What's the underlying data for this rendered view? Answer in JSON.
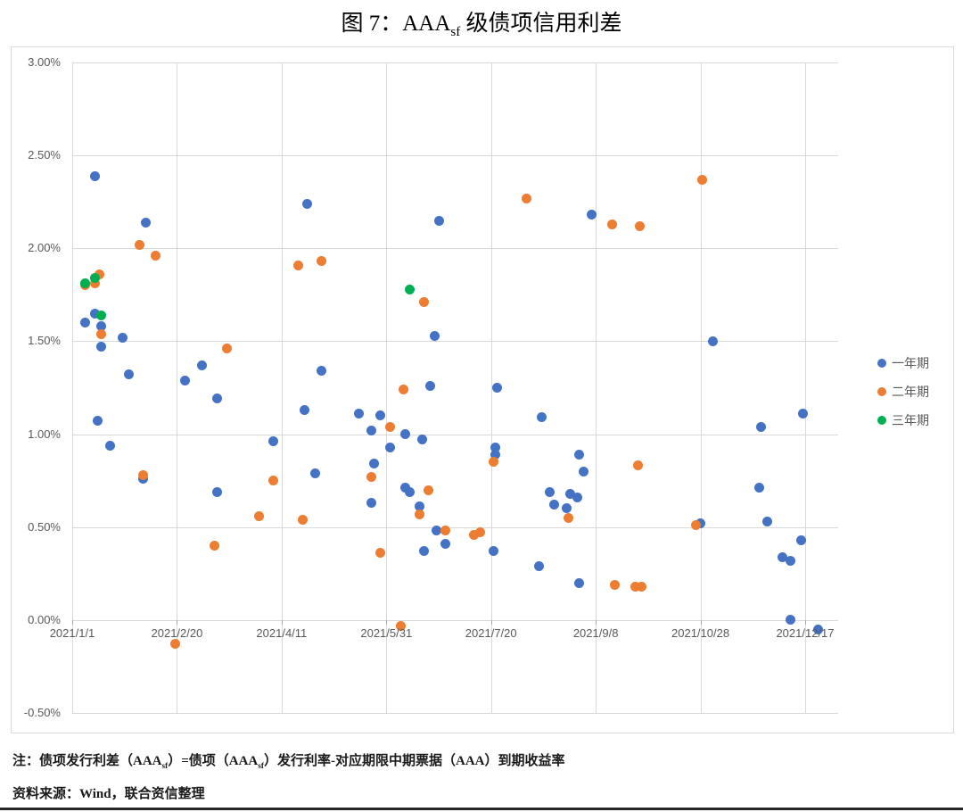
{
  "title": {
    "part1": "图 7：AAA",
    "subscript": "sf",
    "part2": "级债项信用利差"
  },
  "notes": {
    "line1_a": "注：债项发行利差（AAA",
    "line1_sub1": "sf",
    "line1_b": "）=债项（AAA",
    "line1_sub2": "sf",
    "line1_c": "）发行利率-对应期限中期票据（AAA）到期收益率",
    "line2": "资料来源：Wind，联合资信整理"
  },
  "colors": {
    "series1": "#4472C4",
    "series2": "#ED7D31",
    "series3": "#00B050",
    "gridline": "#d9d9d9",
    "axis_text": "#595959"
  },
  "chart_data": {
    "type": "scatter",
    "title": "图 7：AAAsf级债项信用利差",
    "grid": true,
    "legend": {
      "position": "right",
      "entries": [
        "一年期",
        "二年期",
        "三年期"
      ]
    },
    "y_axis": {
      "min": -0.5,
      "max": 3.0,
      "step": 0.5,
      "unit": "percent",
      "tick_values": [
        3.0,
        2.5,
        2.0,
        1.5,
        1.0,
        0.5,
        0.0,
        -0.5
      ],
      "tick_labels": [
        "3.00%",
        "2.50%",
        "2.00%",
        "1.50%",
        "1.00%",
        "0.50%",
        "0.00%",
        "-0.50%"
      ]
    },
    "x_axis": {
      "tick_labels": [
        "2021/1/1",
        "2021/2/20",
        "2021/4/11",
        "2021/5/31",
        "2021/7/20",
        "2021/9/8",
        "2021/10/28",
        "2021/12/17"
      ],
      "tick_days": [
        0,
        50,
        100,
        150,
        200,
        250,
        300,
        350
      ],
      "start": "2021/1/1",
      "end": "2021/12/17"
    },
    "series": [
      {
        "name": "一年期",
        "color": "#4472C4",
        "points": [
          [
            "2021/1/12",
            2.39
          ],
          [
            "2021/2/5",
            2.14
          ],
          [
            "2021/4/23",
            2.24
          ],
          [
            "2021/6/25",
            2.15
          ],
          [
            "2021/9/6",
            2.18
          ],
          [
            "2021/1/12",
            1.65
          ],
          [
            "2021/1/7",
            1.6
          ],
          [
            "2021/1/15",
            1.58
          ],
          [
            "2021/1/25",
            1.52
          ],
          [
            "2021/1/15",
            1.47
          ],
          [
            "2021/6/23",
            1.53
          ],
          [
            "2021/11/3",
            1.5
          ],
          [
            "2021/1/28",
            1.32
          ],
          [
            "2021/3/4",
            1.37
          ],
          [
            "2021/2/24",
            1.29
          ],
          [
            "2021/3/11",
            1.19
          ],
          [
            "2021/4/30",
            1.34
          ],
          [
            "2021/4/22",
            1.13
          ],
          [
            "2021/1/13",
            1.07
          ],
          [
            "2021/1/19",
            0.94
          ],
          [
            "2021/5/18",
            1.11
          ],
          [
            "2021/5/28",
            1.1
          ],
          [
            "2021/5/24",
            1.02
          ],
          [
            "2021/6/9",
            1.0
          ],
          [
            "2021/6/17",
            0.97
          ],
          [
            "2021/6/2",
            0.93
          ],
          [
            "2021/5/25",
            0.84
          ],
          [
            "2021/6/21",
            1.26
          ],
          [
            "2021/7/23",
            1.25
          ],
          [
            "2021/8/13",
            1.09
          ],
          [
            "2021/12/16",
            1.11
          ],
          [
            "2021/11/26",
            1.04
          ],
          [
            "2021/4/7",
            0.96
          ],
          [
            "2021/2/4",
            0.76
          ],
          [
            "2021/4/27",
            0.79
          ],
          [
            "2021/3/11",
            0.69
          ],
          [
            "2021/5/24",
            0.63
          ],
          [
            "2021/6/9",
            0.71
          ],
          [
            "2021/6/11",
            0.69
          ],
          [
            "2021/6/16",
            0.61
          ],
          [
            "2021/6/18",
            0.37
          ],
          [
            "2021/6/24",
            0.48
          ],
          [
            "2021/6/28",
            0.41
          ],
          [
            "2021/7/22",
            0.93
          ],
          [
            "2021/7/22",
            0.89
          ],
          [
            "2021/7/21",
            0.37
          ],
          [
            "2021/8/12",
            0.29
          ],
          [
            "2021/8/31",
            0.2
          ],
          [
            "2021/8/31",
            0.89
          ],
          [
            "2021/9/2",
            0.8
          ],
          [
            "2021/8/17",
            0.69
          ],
          [
            "2021/8/27",
            0.68
          ],
          [
            "2021/8/30",
            0.66
          ],
          [
            "2021/8/19",
            0.62
          ],
          [
            "2021/8/25",
            0.6
          ],
          [
            "2021/10/28",
            0.52
          ],
          [
            "2021/11/25",
            0.71
          ],
          [
            "2021/11/29",
            0.53
          ],
          [
            "2021/12/15",
            0.43
          ],
          [
            "2021/12/6",
            0.34
          ],
          [
            "2021/12/10",
            0.32
          ],
          [
            "2021/12/10",
            0.0
          ],
          [
            "2021/12/23",
            -0.05
          ]
        ]
      },
      {
        "name": "二年期",
        "color": "#ED7D31",
        "points": [
          [
            "2021/2/2",
            2.02
          ],
          [
            "2021/2/10",
            1.96
          ],
          [
            "2021/8/6",
            2.27
          ],
          [
            "2021/9/16",
            2.13
          ],
          [
            "2021/9/29",
            2.12
          ],
          [
            "2021/10/29",
            2.37
          ],
          [
            "2021/1/14",
            1.86
          ],
          [
            "2021/1/12",
            1.81
          ],
          [
            "2021/1/7",
            1.8
          ],
          [
            "2021/1/15",
            1.54
          ],
          [
            "2021/3/16",
            1.46
          ],
          [
            "2021/4/19",
            1.91
          ],
          [
            "2021/4/30",
            1.93
          ],
          [
            "2021/6/8",
            1.24
          ],
          [
            "2021/6/18",
            1.71
          ],
          [
            "2021/2/4",
            0.78
          ],
          [
            "2021/4/7",
            0.75
          ],
          [
            "2021/3/31",
            0.56
          ],
          [
            "2021/4/21",
            0.54
          ],
          [
            "2021/6/2",
            1.04
          ],
          [
            "2021/5/24",
            0.77
          ],
          [
            "2021/6/20",
            0.7
          ],
          [
            "2021/6/16",
            0.57
          ],
          [
            "2021/5/28",
            0.36
          ],
          [
            "2021/3/10",
            0.4
          ],
          [
            "2021/6/28",
            0.48
          ],
          [
            "2021/7/12",
            0.46
          ],
          [
            "2021/7/15",
            0.47
          ],
          [
            "2021/7/21",
            0.85
          ],
          [
            "2021/8/26",
            0.55
          ],
          [
            "2021/9/28",
            0.83
          ],
          [
            "2021/9/17",
            0.19
          ],
          [
            "2021/9/27",
            0.18
          ],
          [
            "2021/9/30",
            0.18
          ],
          [
            "2021/10/26",
            0.51
          ],
          [
            "2021/2/19",
            -0.13
          ],
          [
            "2021/6/7",
            -0.03
          ]
        ]
      },
      {
        "name": "三年期",
        "color": "#00B050",
        "points": [
          [
            "2021/1/12",
            1.84
          ],
          [
            "2021/1/7",
            1.81
          ],
          [
            "2021/1/15",
            1.64
          ],
          [
            "2021/6/11",
            1.78
          ]
        ]
      }
    ]
  }
}
